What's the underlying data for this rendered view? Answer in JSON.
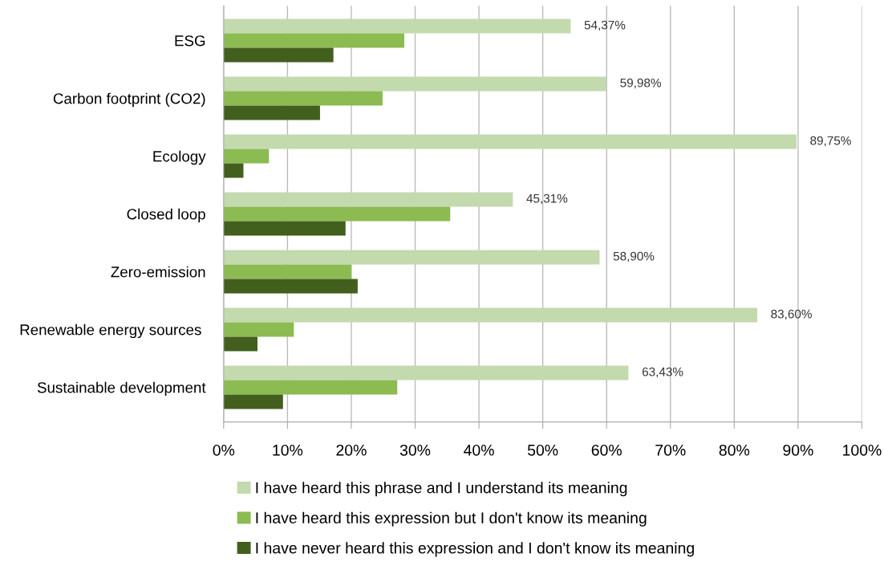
{
  "chart_data": {
    "type": "bar",
    "orientation": "horizontal",
    "categories": [
      "ESG",
      "Carbon footprint (CO2)",
      "Ecology",
      "Closed loop",
      "Zero-emission",
      "Renewable energy sources ",
      "Sustainable development"
    ],
    "series": [
      {
        "name": "I have heard this phrase and I understand its meaning",
        "color": "#c3d9ae",
        "values": [
          54.37,
          59.98,
          89.75,
          45.31,
          58.9,
          83.6,
          63.43
        ],
        "value_labels": [
          "54,37%",
          "59,98%",
          "89,75%",
          "45,31%",
          "58,90%",
          "83,60%",
          "63,43%"
        ]
      },
      {
        "name": "I have heard this expression but I don't know its meaning",
        "color": "#8cbb52",
        "values": [
          28.3,
          24.9,
          7.1,
          35.5,
          20.0,
          11.0,
          27.2
        ]
      },
      {
        "name": "I have never heard this expression and I don't know its meaning",
        "color": "#435f1e",
        "values": [
          17.2,
          15.1,
          3.1,
          19.1,
          21.0,
          5.3,
          9.3
        ]
      }
    ],
    "xlim": [
      0,
      100
    ],
    "xticks": [
      {
        "value": 0,
        "label": "0%"
      },
      {
        "value": 10,
        "label": "10%"
      },
      {
        "value": 20,
        "label": "20%"
      },
      {
        "value": 30,
        "label": "30%"
      },
      {
        "value": 40,
        "label": "40%"
      },
      {
        "value": 50,
        "label": "50%"
      },
      {
        "value": 60,
        "label": "60%"
      },
      {
        "value": 70,
        "label": "70%"
      },
      {
        "value": 80,
        "label": "80%"
      },
      {
        "value": 90,
        "label": "90%"
      },
      {
        "value": 100,
        "label": "100%"
      }
    ],
    "grid": "x",
    "legend": "bottom"
  }
}
